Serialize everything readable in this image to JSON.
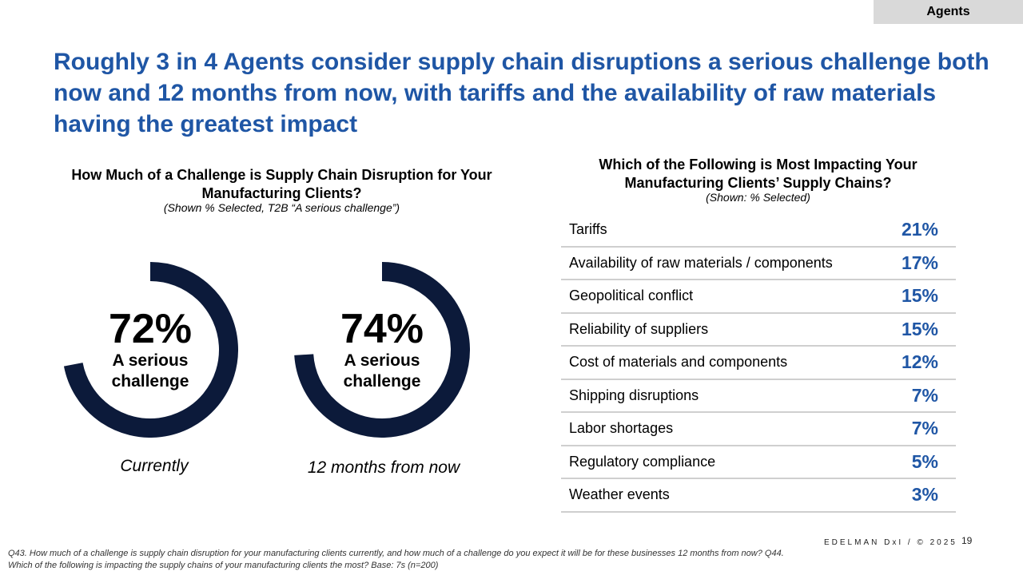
{
  "tag": "Agents",
  "headline": "Roughly 3 in 4 Agents consider supply chain disruptions a serious challenge both now and 12 months from now, with tariffs and the availability of raw materials having the greatest impact",
  "left": {
    "title": "How Much of a Challenge is Supply Chain Disruption for Your Manufacturing Clients?",
    "subtitle": "(Shown % Selected, T2B “A serious challenge”)"
  },
  "right": {
    "title": "Which of the Following is Most Impacting Your Manufacturing Clients’ Supply Chains?",
    "subtitle": "(Shown: % Selected)"
  },
  "chart_data": [
    {
      "type": "pie",
      "title": "How Much of a Challenge is Supply Chain Disruption for Your Manufacturing Clients?",
      "subtitle": "(Shown % Selected, T2B “A serious challenge”)",
      "series": [
        {
          "name": "Currently",
          "value": 72,
          "value_label": "72%",
          "center_label": "A serious challenge"
        },
        {
          "name": "12 months from now",
          "value": 74,
          "value_label": "74%",
          "center_label": "A serious challenge"
        }
      ],
      "color": "#0c1a3a"
    },
    {
      "type": "table",
      "title": "Which of the Following is Most Impacting Your Manufacturing Clients’ Supply Chains?",
      "subtitle": "(Shown: % Selected)",
      "rows": [
        {
          "label": "Tariffs",
          "value": "21%"
        },
        {
          "label": "Availability of raw materials / components",
          "value": "17%"
        },
        {
          "label": "Geopolitical conflict",
          "value": "15%"
        },
        {
          "label": "Reliability of suppliers",
          "value": "15%"
        },
        {
          "label": "Cost of materials and components",
          "value": "12%"
        },
        {
          "label": "Shipping disruptions",
          "value": "7%"
        },
        {
          "label": "Labor shortages",
          "value": "7%"
        },
        {
          "label": "Regulatory compliance",
          "value": "5%"
        },
        {
          "label": "Weather events",
          "value": "3%"
        }
      ]
    }
  ],
  "footer": {
    "note": "Q43. How much of a challenge is supply chain disruption for your manufacturing clients currently, and how much of a challenge do you expect it will be for these businesses 12 months from now? Q44. Which of the following is impacting the supply chains of your manufacturing clients the most? Base: 7s (n=200)",
    "brand": "EDELMAN DxI / © 2025",
    "page": "19"
  },
  "colors": {
    "accent": "#1f56a5",
    "donut": "#0c1a3a",
    "tag_bg": "#d9d9d9"
  }
}
